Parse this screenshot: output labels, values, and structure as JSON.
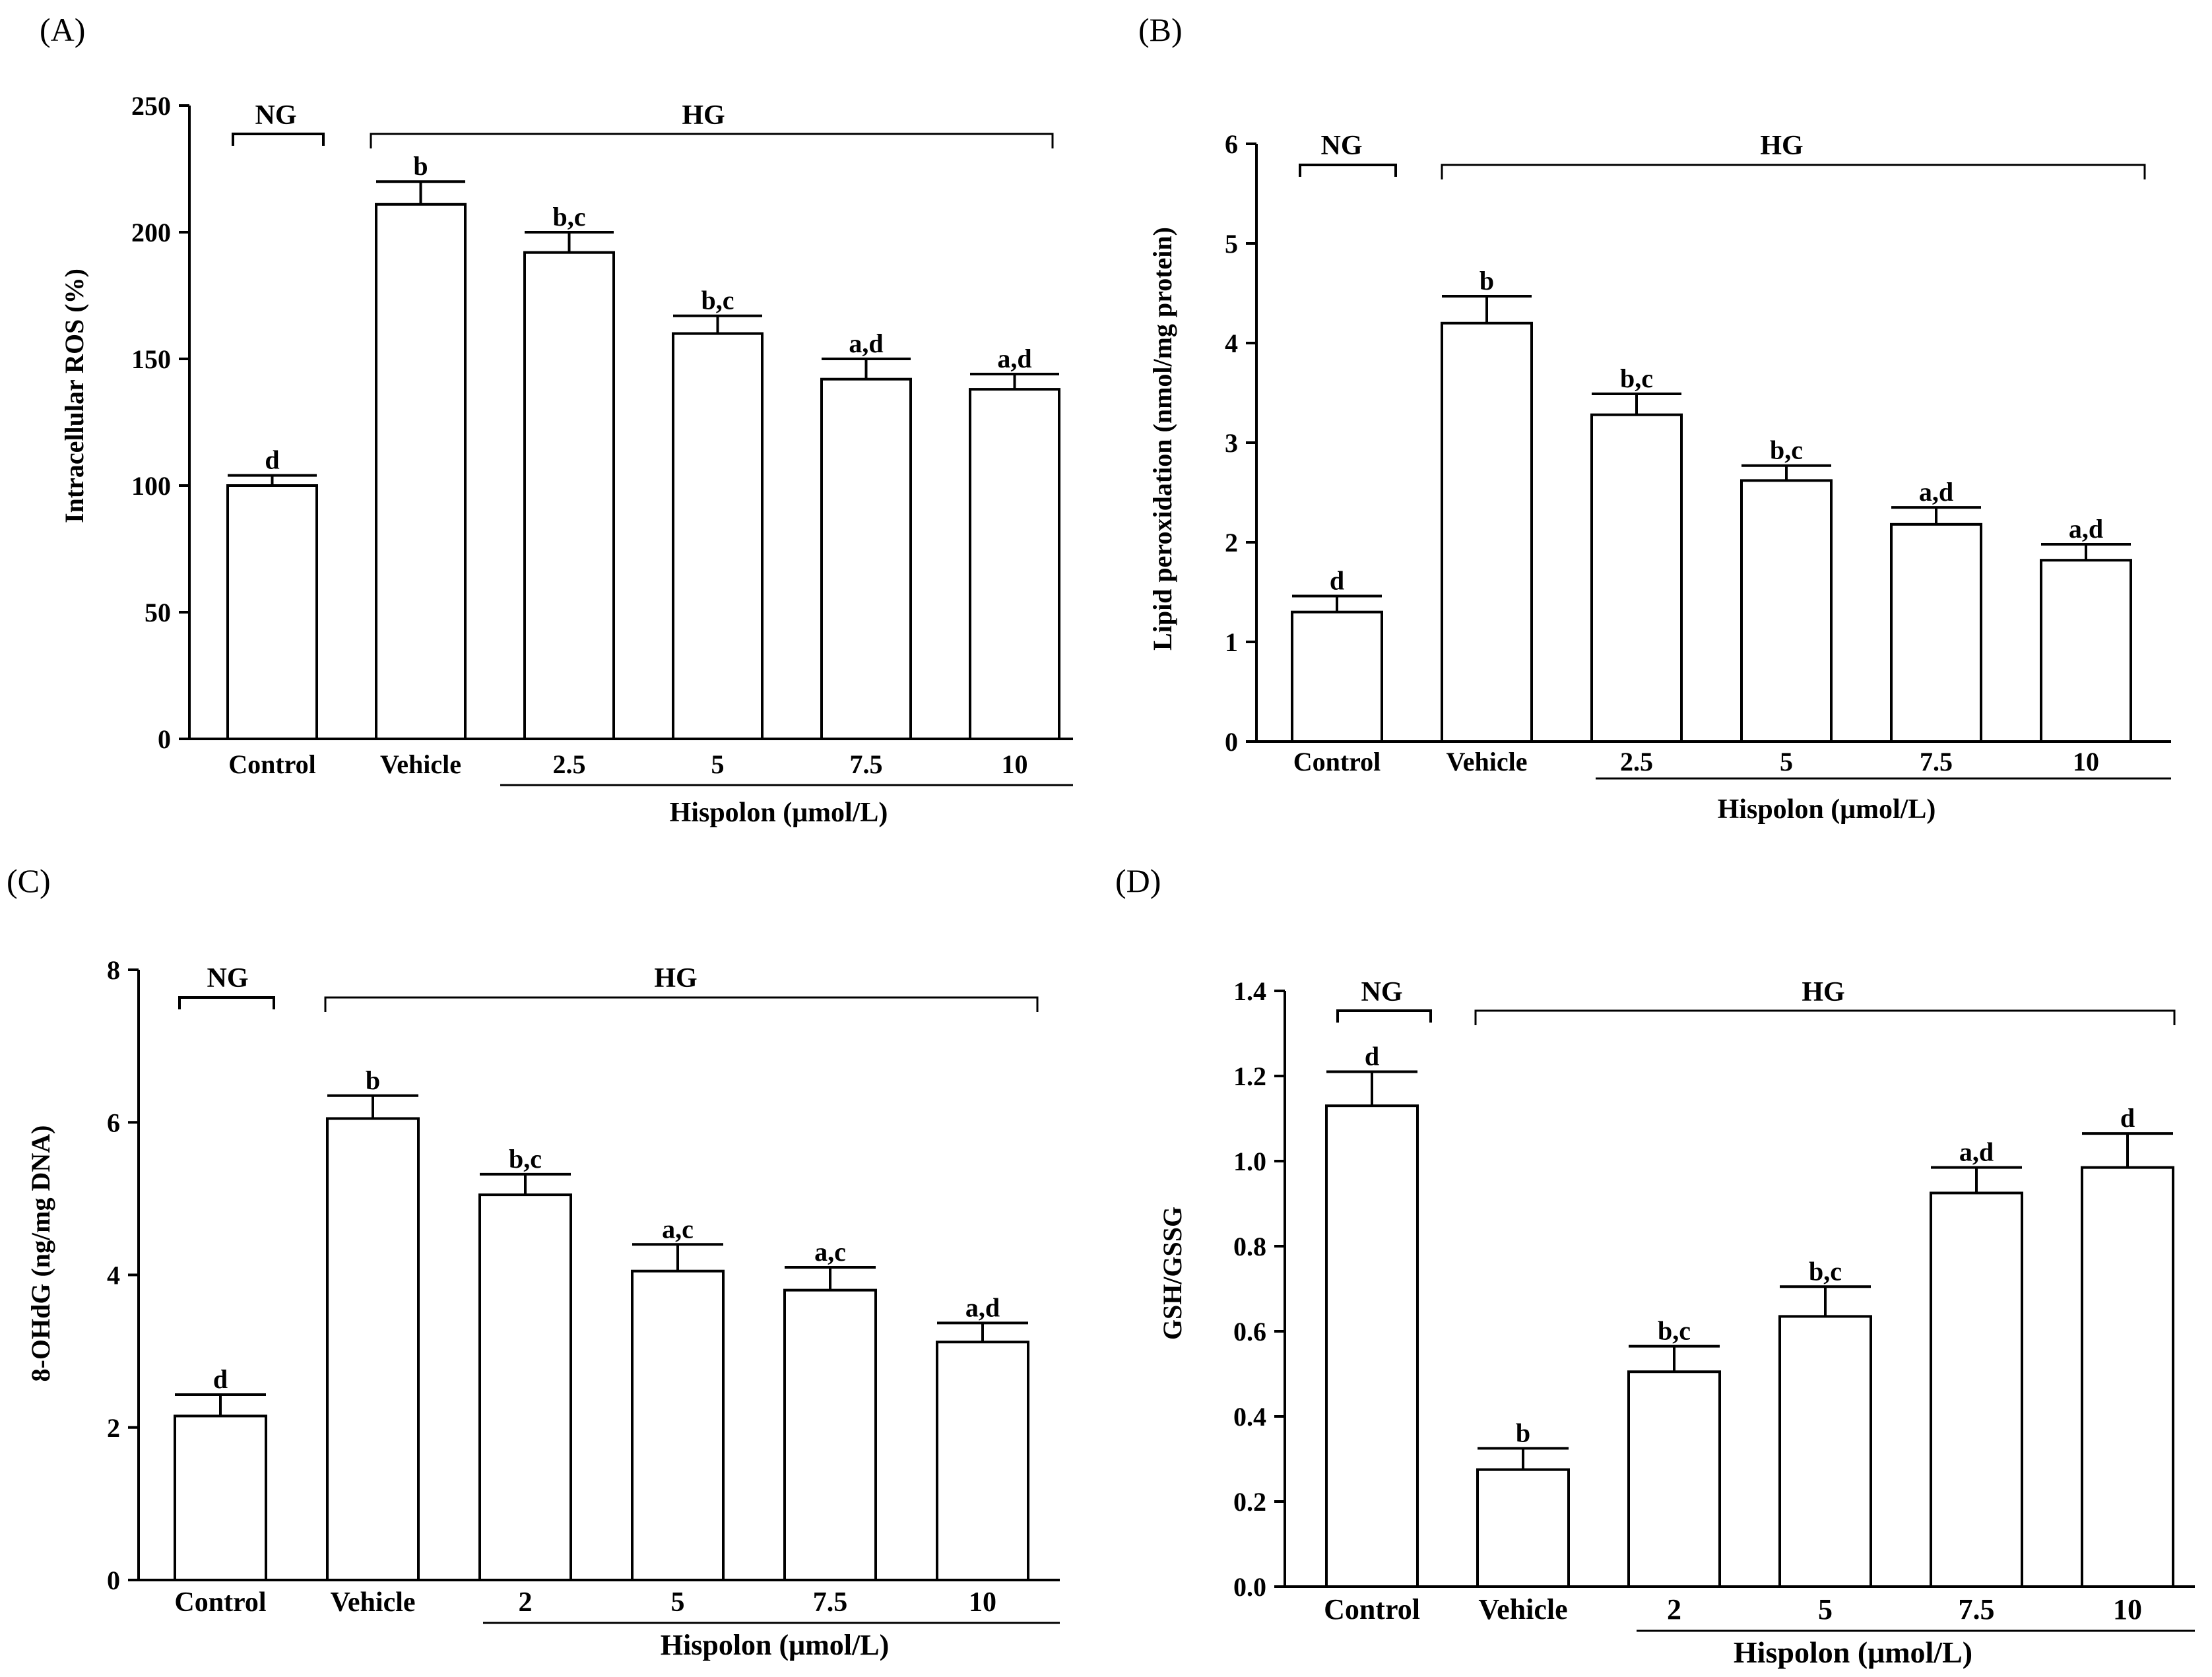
{
  "figure": {
    "colors": {
      "bar_fill": "#ffffff",
      "stroke": "#000000",
      "background": "#ffffff"
    },
    "panels": [
      {
        "label": "(A)",
        "ng_label": "NG",
        "hg_label": "HG",
        "group_label": "Hispolon (μmol/L)",
        "chart_data": {
          "type": "bar",
          "title": "",
          "xlabel": "Hispolon (μmol/L)",
          "ylabel": "Intracellular ROS (%)",
          "ylim": [
            0,
            250
          ],
          "yticks": [
            0,
            50,
            100,
            150,
            200,
            250
          ],
          "ytick_labels": [
            "0",
            "50",
            "100",
            "150",
            "200",
            "250"
          ],
          "categories": [
            "Control",
            "Vehicle",
            "2.5",
            "5",
            "7.5",
            "10"
          ],
          "values": [
            100,
            211,
            192,
            160,
            142,
            138
          ],
          "errors": [
            4,
            9,
            8,
            7,
            8,
            6
          ],
          "annotations": [
            "d",
            "b",
            "b,c",
            "b,c",
            "a,d",
            "a,d"
          ],
          "grid": false,
          "legend": "none"
        }
      },
      {
        "label": "(B)",
        "ng_label": "NG",
        "hg_label": "HG",
        "group_label": "Hispolon (μmol/L)",
        "chart_data": {
          "type": "bar",
          "title": "",
          "xlabel": "Hispolon (μmol/L)",
          "ylabel": "Lipid peroxidation (nmol/mg protein)",
          "ylim": [
            0,
            6
          ],
          "yticks": [
            0,
            1,
            2,
            3,
            4,
            5,
            6
          ],
          "ytick_labels": [
            "0",
            "1",
            "2",
            "3",
            "4",
            "5",
            "6"
          ],
          "categories": [
            "Control",
            "Vehicle",
            "2.5",
            "5",
            "7.5",
            "10"
          ],
          "values": [
            1.3,
            4.2,
            3.28,
            2.62,
            2.18,
            1.82
          ],
          "errors": [
            0.16,
            0.27,
            0.21,
            0.15,
            0.17,
            0.16
          ],
          "annotations": [
            "d",
            "b",
            "b,c",
            "b,c",
            "a,d",
            "a,d"
          ],
          "grid": false,
          "legend": "none"
        }
      },
      {
        "label": "(C)",
        "ng_label": "NG",
        "hg_label": "HG",
        "group_label": "Hispolon (μmol/L)",
        "chart_data": {
          "type": "bar",
          "title": "",
          "xlabel": "Hispolon (μmol/L)",
          "ylabel": "8-OHdG (ng/mg DNA)",
          "ylim": [
            0,
            8
          ],
          "yticks": [
            0,
            2,
            4,
            6,
            8
          ],
          "ytick_labels": [
            "0",
            "2",
            "4",
            "6",
            "8"
          ],
          "categories": [
            "Control",
            "Vehicle",
            "2",
            "5",
            "7.5",
            "10"
          ],
          "values": [
            2.15,
            6.05,
            5.05,
            4.05,
            3.8,
            3.12
          ],
          "errors": [
            0.28,
            0.3,
            0.27,
            0.35,
            0.3,
            0.25
          ],
          "annotations": [
            "d",
            "b",
            "b,c",
            "a,c",
            "a,c",
            "a,d"
          ],
          "grid": false,
          "legend": "none"
        }
      },
      {
        "label": "(D)",
        "ng_label": "NG",
        "hg_label": "HG",
        "group_label": "Hispolon  (μmol/L)",
        "chart_data": {
          "type": "bar",
          "title": "",
          "xlabel": "Hispolon  (μmol/L)",
          "ylabel": "GSH/GSSG",
          "ylim": [
            0,
            1.4
          ],
          "yticks": [
            0,
            0.2,
            0.4,
            0.6,
            0.8,
            1.0,
            1.2,
            1.4
          ],
          "ytick_labels": [
            "0.0",
            "0.2",
            "0.4",
            "0.6",
            "0.8",
            "1.0",
            "1.2",
            "1.4"
          ],
          "categories": [
            "Control",
            "Vehicle",
            "2",
            "5",
            "7.5",
            "10"
          ],
          "values": [
            1.13,
            0.275,
            0.505,
            0.635,
            0.925,
            0.985
          ],
          "errors": [
            0.08,
            0.05,
            0.06,
            0.07,
            0.06,
            0.08
          ],
          "annotations": [
            "d",
            "b",
            "b,c",
            "b,c",
            "a,d",
            "d"
          ],
          "grid": false,
          "legend": "none"
        }
      }
    ]
  }
}
